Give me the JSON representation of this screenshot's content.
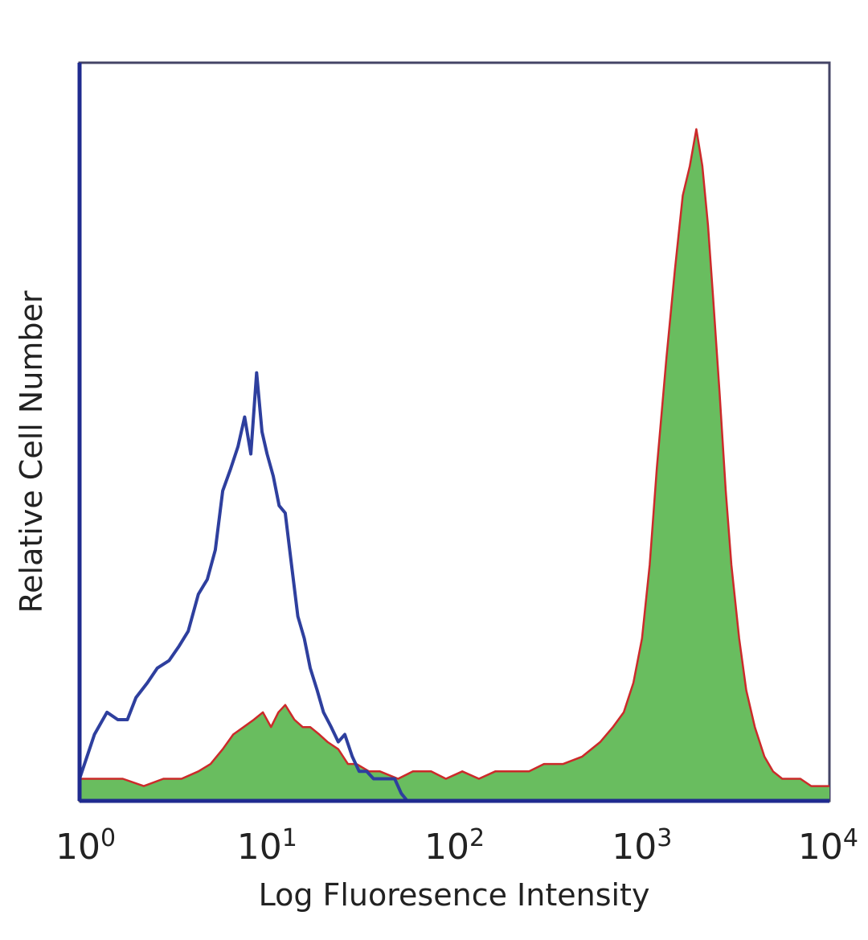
{
  "chart_data": {
    "type": "area",
    "title": "",
    "xlabel": "Log Fluoresence Intensity",
    "ylabel": "Relative Cell Number",
    "x_scale": "log",
    "xlim": [
      1,
      10000
    ],
    "ylim": [
      0,
      100
    ],
    "grid": false,
    "legend": "none",
    "x_ticks": [
      {
        "base": "10",
        "exp": "0"
      },
      {
        "base": "10",
        "exp": "1"
      },
      {
        "base": "10",
        "exp": "2"
      },
      {
        "base": "10",
        "exp": "3"
      },
      {
        "base": "10",
        "exp": "4"
      }
    ],
    "series": [
      {
        "style": "outline",
        "color": "#2e3f9e",
        "x": [
          1.0,
          1.2,
          1.4,
          1.6,
          1.8,
          2.0,
          2.3,
          2.6,
          3.0,
          3.4,
          3.8,
          4.3,
          4.8,
          5.3,
          5.8,
          6.4,
          7.0,
          7.6,
          8.2,
          8.8,
          9.4,
          10.0,
          10.8,
          11.6,
          12.5,
          13.5,
          14.6,
          15.8,
          17.0,
          18.5,
          20.0,
          22.0,
          24.0,
          26.0,
          28.5,
          31.0,
          34.0,
          37.0,
          40.0,
          44.0,
          48.0,
          52.0,
          56.0
        ],
        "y": [
          3,
          9,
          12,
          11,
          11,
          14,
          16,
          18,
          19,
          21,
          23,
          28,
          30,
          34,
          42,
          45,
          48,
          52,
          47,
          58,
          50,
          47,
          44,
          40,
          39,
          32,
          25,
          22,
          18,
          15,
          12,
          10,
          8,
          9,
          6,
          4,
          4,
          3,
          3,
          3,
          3,
          1,
          0
        ]
      },
      {
        "style": "filled",
        "color": "#cc2a2a",
        "fill": "#69bd5f",
        "x": [
          1.0,
          1.3,
          1.7,
          2.2,
          2.8,
          3.5,
          4.3,
          5.0,
          5.8,
          6.6,
          7.5,
          8.5,
          9.5,
          10.5,
          11.5,
          12.5,
          14.0,
          15.5,
          17.0,
          19.0,
          21.0,
          24.0,
          27.0,
          30.0,
          35.0,
          40.0,
          50.0,
          60.0,
          75.0,
          90.0,
          110.0,
          135.0,
          165.0,
          200.0,
          250.0,
          300.0,
          380.0,
          480.0,
          600.0,
          700.0,
          800.0,
          900.0,
          1000.0,
          1100.0,
          1200.0,
          1350.0,
          1500.0,
          1650.0,
          1800.0,
          1950.0,
          2100.0,
          2250.0,
          2400.0,
          2600.0,
          2800.0,
          3000.0,
          3300.0,
          3600.0,
          4000.0,
          4500.0,
          5000.0,
          5600.0,
          6300.0,
          7000.0,
          8000.0,
          9000.0,
          10000.0
        ],
        "y": [
          3,
          3,
          3,
          2,
          3,
          3,
          4,
          5,
          7,
          9,
          10,
          11,
          12,
          10,
          12,
          13,
          11,
          10,
          10,
          9,
          8,
          7,
          5,
          5,
          4,
          4,
          3,
          4,
          4,
          3,
          4,
          3,
          4,
          4,
          4,
          5,
          5,
          6,
          8,
          10,
          12,
          16,
          22,
          32,
          45,
          60,
          72,
          82,
          86,
          91,
          86,
          78,
          68,
          55,
          42,
          32,
          22,
          15,
          10,
          6,
          4,
          3,
          3,
          3,
          2,
          2,
          2
        ]
      }
    ]
  }
}
